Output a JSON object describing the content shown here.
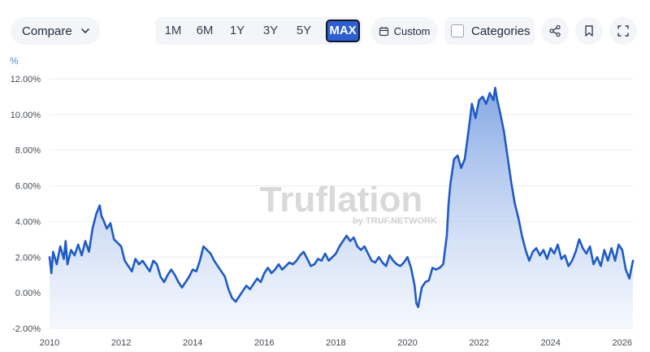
{
  "toolbar": {
    "compare_label": "Compare",
    "ranges": [
      "1M",
      "6M",
      "1Y",
      "3Y",
      "5Y",
      "MAX"
    ],
    "active_range": "MAX",
    "custom_label": "Custom",
    "categories_label": "Categories",
    "categories_checked": false
  },
  "icons": {
    "compare_chevron": "chevron-down-icon",
    "custom": "calendar-icon",
    "share": "share-icon",
    "bookmark": "bookmark-icon",
    "fullscreen": "fullscreen-icon"
  },
  "watermark": {
    "brand": "Truflation",
    "byline": "by TRUF.NETWORK"
  },
  "colors": {
    "line": "#1f5bc4",
    "fill_top": "#7fa3e3",
    "fill_bottom": "#eef3fc",
    "active_range": "#2d5fd0"
  },
  "chart_data": {
    "type": "area",
    "unit_label": "%",
    "ylim": [
      -2,
      12
    ],
    "xlim": [
      2010,
      2026.3
    ],
    "y_ticks": [
      "12.00%",
      "10.00%",
      "8.00%",
      "6.00%",
      "4.00%",
      "2.00%",
      "0.00%",
      "-2.00%"
    ],
    "y_tick_values": [
      12,
      10,
      8,
      6,
      4,
      2,
      0,
      -2
    ],
    "x_ticks": [
      "2010",
      "2012",
      "2014",
      "2016",
      "2018",
      "2020",
      "2022",
      "2024",
      "2026"
    ],
    "x_tick_values": [
      2010,
      2012,
      2014,
      2016,
      2018,
      2020,
      2022,
      2024,
      2026
    ],
    "grid": true,
    "series": [
      {
        "x": [
          2010.0,
          2010.05,
          2010.1,
          2010.2,
          2010.3,
          2010.4,
          2010.45,
          2010.5,
          2010.6,
          2010.7,
          2010.8,
          2010.9,
          2011.0,
          2011.1,
          2011.2,
          2011.3,
          2011.4,
          2011.45,
          2011.5,
          2011.6,
          2011.7,
          2011.8,
          2011.9,
          2012.0,
          2012.1,
          2012.2,
          2012.3,
          2012.4,
          2012.5,
          2012.6,
          2012.7,
          2012.8,
          2012.9,
          2013.0,
          2013.1,
          2013.2,
          2013.3,
          2013.4,
          2013.5,
          2013.6,
          2013.7,
          2013.8,
          2013.9,
          2014.0,
          2014.1,
          2014.2,
          2014.3,
          2014.4,
          2014.5,
          2014.6,
          2014.7,
          2014.8,
          2014.9,
          2015.0,
          2015.1,
          2015.2,
          2015.3,
          2015.4,
          2015.5,
          2015.6,
          2015.7,
          2015.8,
          2015.9,
          2016.0,
          2016.1,
          2016.2,
          2016.3,
          2016.4,
          2016.5,
          2016.6,
          2016.7,
          2016.8,
          2016.9,
          2017.0,
          2017.1,
          2017.2,
          2017.3,
          2017.4,
          2017.5,
          2017.6,
          2017.7,
          2017.8,
          2017.9,
          2018.0,
          2018.1,
          2018.2,
          2018.3,
          2018.4,
          2018.5,
          2018.6,
          2018.7,
          2018.8,
          2018.9,
          2019.0,
          2019.1,
          2019.2,
          2019.3,
          2019.4,
          2019.5,
          2019.6,
          2019.7,
          2019.8,
          2019.9,
          2020.0,
          2020.1,
          2020.2,
          2020.25,
          2020.3,
          2020.4,
          2020.5,
          2020.6,
          2020.7,
          2020.8,
          2020.9,
          2021.0,
          2021.1,
          2021.15,
          2021.2,
          2021.3,
          2021.4,
          2021.5,
          2021.6,
          2021.7,
          2021.8,
          2021.9,
          2022.0,
          2022.1,
          2022.2,
          2022.3,
          2022.4,
          2022.45,
          2022.5,
          2022.6,
          2022.7,
          2022.8,
          2022.9,
          2023.0,
          2023.1,
          2023.2,
          2023.3,
          2023.4,
          2023.5,
          2023.6,
          2023.7,
          2023.8,
          2023.9,
          2024.0,
          2024.1,
          2024.2,
          2024.3,
          2024.4,
          2024.5,
          2024.6,
          2024.7,
          2024.8,
          2024.9,
          2025.0,
          2025.1,
          2025.2,
          2025.3,
          2025.4,
          2025.5,
          2025.6,
          2025.7,
          2025.8,
          2025.9,
          2026.0,
          2026.1,
          2026.2,
          2026.3
        ],
        "values": [
          2.0,
          1.1,
          2.3,
          1.6,
          2.6,
          1.9,
          2.9,
          1.6,
          2.4,
          2.1,
          2.7,
          2.1,
          2.9,
          2.3,
          3.6,
          4.4,
          4.9,
          4.3,
          4.1,
          3.6,
          3.9,
          3.0,
          2.8,
          2.6,
          1.8,
          1.5,
          1.2,
          1.9,
          1.6,
          1.8,
          1.5,
          1.2,
          1.8,
          1.6,
          0.9,
          0.6,
          1.0,
          1.3,
          1.0,
          0.6,
          0.3,
          0.6,
          0.9,
          1.3,
          1.2,
          1.8,
          2.6,
          2.4,
          2.2,
          1.8,
          1.5,
          1.2,
          0.9,
          0.2,
          -0.3,
          -0.5,
          -0.2,
          0.1,
          0.4,
          0.2,
          0.5,
          0.8,
          0.6,
          1.1,
          1.4,
          1.1,
          1.3,
          1.6,
          1.3,
          1.5,
          1.7,
          1.6,
          1.8,
          2.1,
          2.3,
          1.9,
          1.5,
          1.6,
          1.9,
          1.8,
          2.2,
          1.8,
          2.0,
          2.2,
          2.6,
          2.9,
          3.2,
          2.9,
          3.1,
          2.6,
          2.4,
          2.6,
          2.2,
          1.8,
          1.7,
          2.0,
          1.7,
          1.5,
          2.1,
          1.8,
          1.6,
          1.5,
          1.7,
          2.0,
          1.4,
          0.4,
          -0.6,
          -0.8,
          0.3,
          0.6,
          0.7,
          1.4,
          1.3,
          1.4,
          1.6,
          3.2,
          5.0,
          6.1,
          7.5,
          7.7,
          7.0,
          7.5,
          9.0,
          10.6,
          9.8,
          10.8,
          11.0,
          10.6,
          11.2,
          10.8,
          11.5,
          10.9,
          10.0,
          9.0,
          7.6,
          6.2,
          5.0,
          4.2,
          3.2,
          2.4,
          1.8,
          2.3,
          2.5,
          2.1,
          2.4,
          1.9,
          2.5,
          2.2,
          2.7,
          1.9,
          2.1,
          1.5,
          1.8,
          2.3,
          3.0,
          2.5,
          2.2,
          2.6,
          1.6,
          2.0,
          1.5,
          2.4,
          1.8,
          2.5,
          1.8,
          2.7,
          2.4,
          1.3,
          0.8,
          1.8
        ]
      }
    ]
  }
}
